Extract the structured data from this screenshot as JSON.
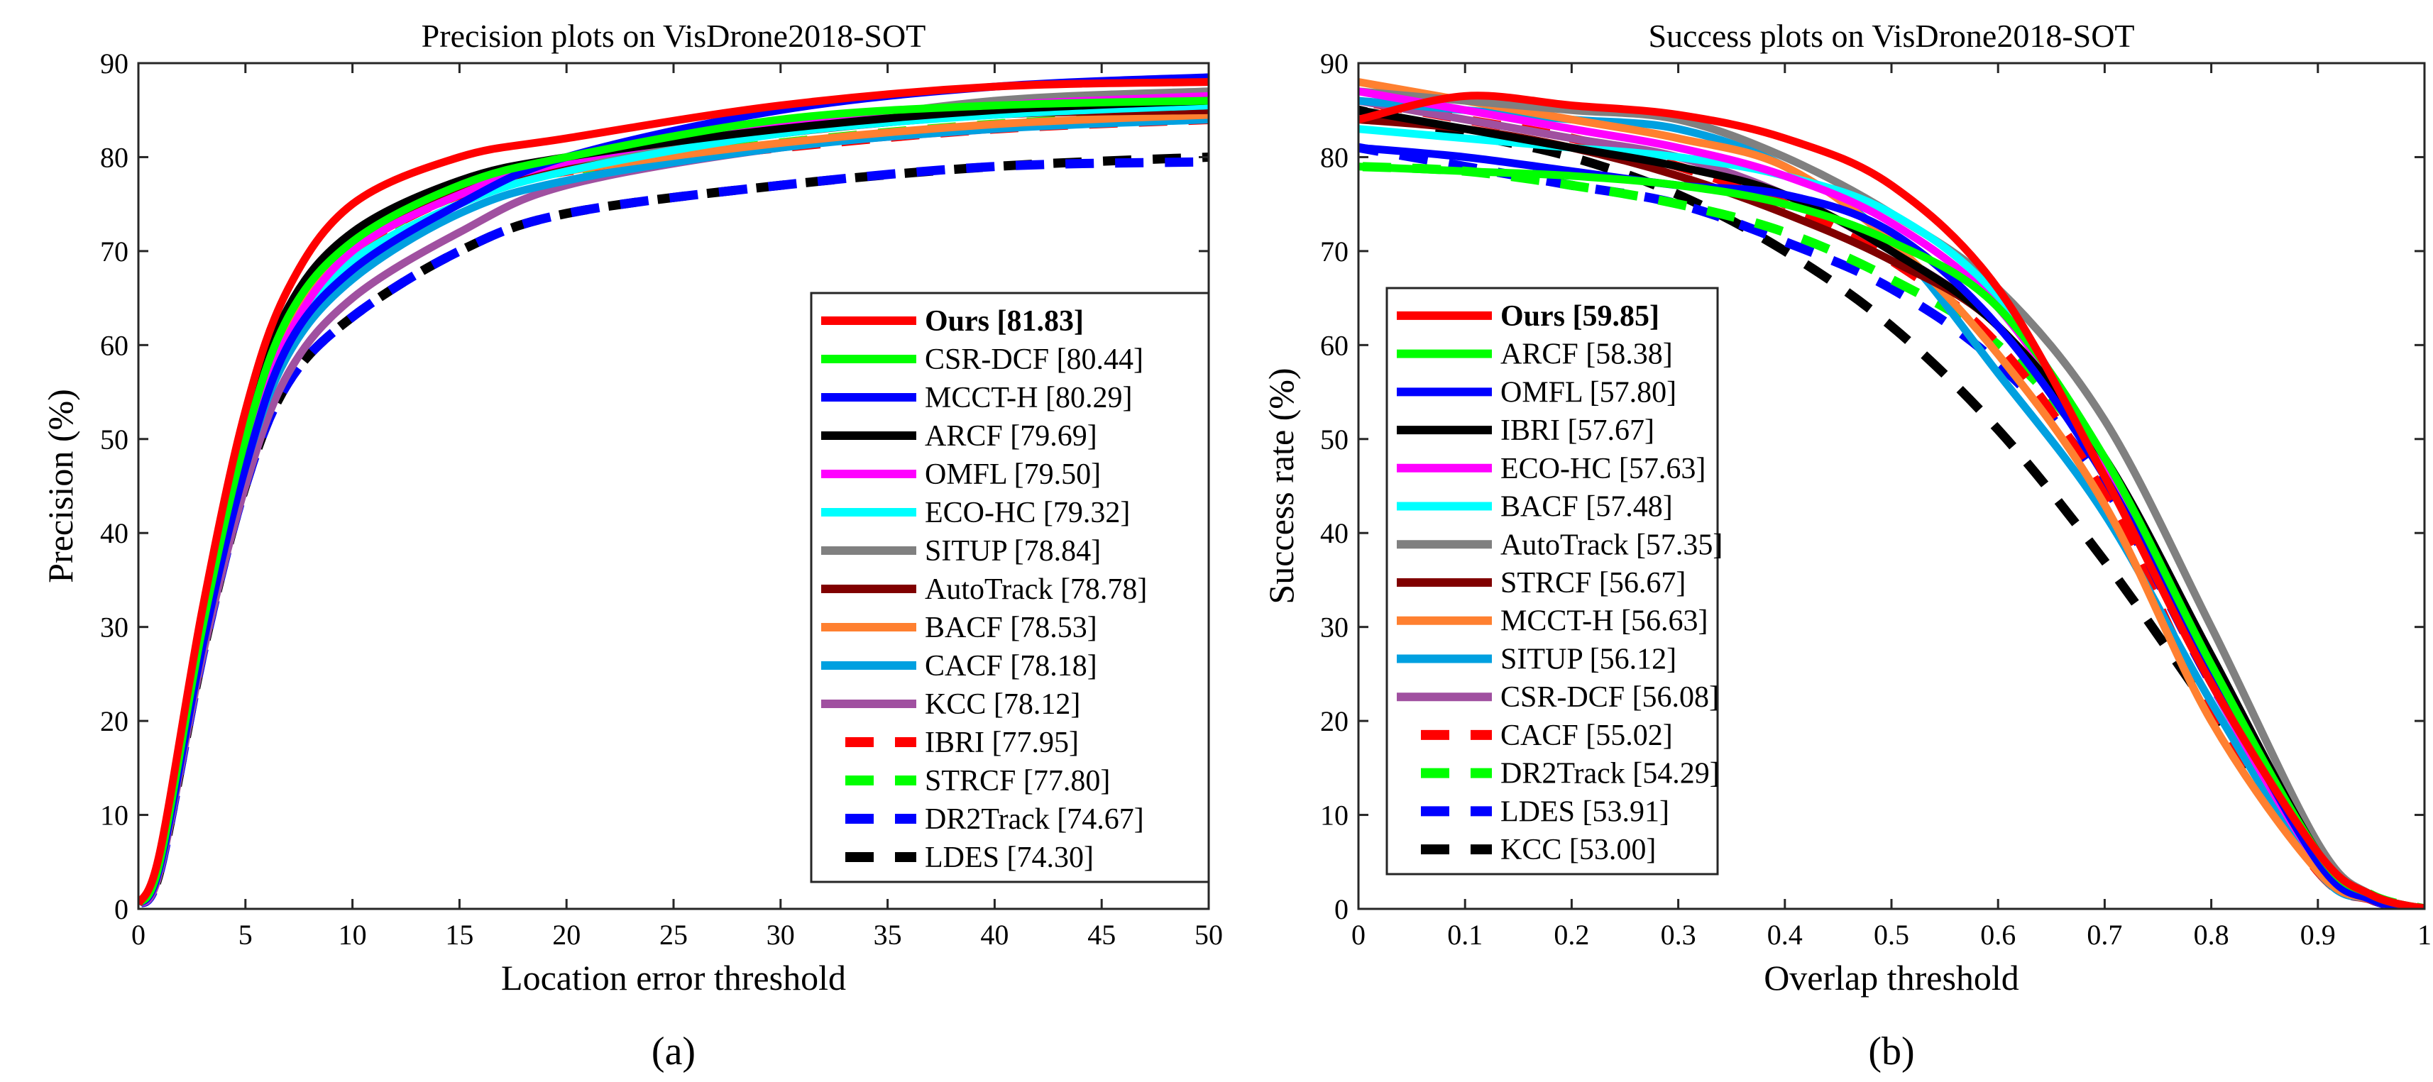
{
  "chart_data": [
    {
      "type": "line",
      "panel_label": "(a)",
      "title": "Precision plots on VisDrone2018-SOT",
      "xlabel": "Location error threshold",
      "ylabel": "Precision (%)",
      "xlim": [
        0,
        50
      ],
      "ylim": [
        0,
        90
      ],
      "xticks": [
        0,
        5,
        10,
        15,
        20,
        25,
        30,
        35,
        40,
        45,
        50
      ],
      "yticks": [
        0,
        10,
        20,
        30,
        40,
        50,
        60,
        70,
        80,
        90
      ],
      "grid": false,
      "legend_position": "bottom-right",
      "x": [
        0,
        1,
        3,
        5,
        7,
        10,
        15,
        20,
        30,
        40,
        50
      ],
      "series": [
        {
          "name": "Ours [81.83]",
          "color": "#ff0000",
          "dashed": false,
          "bold": true,
          "values": [
            0.5,
            6,
            32,
            53,
            66,
            75,
            80,
            82,
            85.5,
            87.5,
            88
          ]
        },
        {
          "name": "CSR-DCF [80.44]",
          "color": "#00ff00",
          "dashed": false,
          "values": [
            0.5,
            5,
            30,
            50,
            63,
            71,
            77,
            80,
            84,
            85.5,
            86
          ]
        },
        {
          "name": "MCCT-H [80.29]",
          "color": "#0000ff",
          "dashed": false,
          "values": [
            0.5,
            4.5,
            28,
            47,
            60,
            68,
            75,
            80,
            85,
            87.5,
            88.5
          ]
        },
        {
          "name": "ARCF [79.69]",
          "color": "#000000",
          "dashed": false,
          "values": [
            0.5,
            5,
            31,
            51,
            64,
            72,
            77.5,
            80,
            83,
            85,
            86
          ]
        },
        {
          "name": "OMFL [79.50]",
          "color": "#ff00ff",
          "dashed": false,
          "values": [
            0.5,
            4.5,
            29,
            48,
            61,
            70,
            76,
            79.5,
            83.5,
            85.5,
            86.5
          ]
        },
        {
          "name": "ECO-HC [79.32]",
          "color": "#00ffff",
          "dashed": false,
          "values": [
            0.5,
            5,
            29,
            48,
            61,
            69,
            75,
            78.5,
            82.5,
            84.5,
            85.5
          ]
        },
        {
          "name": "SITUP [78.84]",
          "color": "#808080",
          "dashed": false,
          "values": [
            0.5,
            5,
            30,
            50,
            63,
            71,
            77,
            79.5,
            83,
            86,
            87
          ]
        },
        {
          "name": "AutoTrack [78.78]",
          "color": "#800000",
          "dashed": false,
          "values": [
            0.5,
            5,
            30,
            50,
            63,
            71,
            76.5,
            79,
            82.5,
            84.5,
            85
          ]
        },
        {
          "name": "BACF [78.53]",
          "color": "#ff8030",
          "dashed": false,
          "values": [
            0.5,
            5,
            30,
            50,
            62,
            70,
            76,
            78.5,
            81.5,
            83.5,
            84.5
          ]
        },
        {
          "name": "CACF [78.18]",
          "color": "#00a0e0",
          "dashed": false,
          "values": [
            0.5,
            4.5,
            28,
            47,
            59,
            67,
            74,
            77.5,
            81,
            83,
            84
          ]
        },
        {
          "name": "KCC [78.12]",
          "color": "#a050a0",
          "dashed": false,
          "values": [
            0.5,
            4,
            27,
            45,
            57,
            65,
            72,
            77,
            81,
            83,
            84.5
          ]
        },
        {
          "name": "IBRI [77.95]",
          "color": "#ff0000",
          "dashed": true,
          "values": [
            0.5,
            5,
            30,
            49,
            62,
            70,
            76,
            78.5,
            81,
            83,
            84
          ]
        },
        {
          "name": "STRCF [77.80]",
          "color": "#00ff00",
          "dashed": true,
          "values": [
            0.5,
            5,
            30,
            49,
            62,
            70,
            76,
            78.5,
            81.5,
            83.5,
            84.5
          ]
        },
        {
          "name": "DR2Track [74.67]",
          "color": "#0000ff",
          "dashed": true,
          "values": [
            0.5,
            4,
            27,
            45,
            56,
            63,
            70,
            74,
            77,
            79,
            79.5
          ]
        },
        {
          "name": "LDES [74.30]",
          "color": "#000000",
          "dashed": true,
          "values": [
            0.5,
            4,
            27,
            45,
            56,
            63,
            70,
            74,
            77,
            79,
            80
          ]
        }
      ]
    },
    {
      "type": "line",
      "panel_label": "(b)",
      "title": "Success plots on VisDrone2018-SOT",
      "xlabel": "Overlap threshold",
      "ylabel": "Success rate (%)",
      "xlim": [
        0,
        1
      ],
      "ylim": [
        0,
        90
      ],
      "xticks": [
        0,
        0.1,
        0.2,
        0.3,
        0.4,
        0.5,
        0.6,
        0.7,
        0.8,
        0.9,
        1
      ],
      "yticks": [
        0,
        10,
        20,
        30,
        40,
        50,
        60,
        70,
        80,
        90
      ],
      "grid": false,
      "legend_position": "bottom-left",
      "x": [
        0,
        0.1,
        0.2,
        0.3,
        0.4,
        0.5,
        0.6,
        0.7,
        0.8,
        0.9,
        0.95,
        1
      ],
      "series": [
        {
          "name": "Ours [59.85]",
          "color": "#ff0000",
          "dashed": false,
          "bold": true,
          "values": [
            84,
            86.5,
            85.5,
            84.5,
            82,
            77,
            66,
            46,
            24,
            6,
            1.5,
            0
          ]
        },
        {
          "name": "ARCF [58.38]",
          "color": "#00ff00",
          "dashed": false,
          "values": [
            79,
            78.5,
            78,
            77,
            75,
            71,
            64,
            48,
            26,
            6,
            1.5,
            0
          ]
        },
        {
          "name": "OMFL [57.80]",
          "color": "#0000ff",
          "dashed": false,
          "values": [
            81,
            80,
            78.5,
            77,
            76,
            72,
            62,
            46,
            25,
            5,
            1,
            0
          ]
        },
        {
          "name": "IBRI [57.67]",
          "color": "#000000",
          "dashed": false,
          "values": [
            85,
            83,
            81,
            79,
            76,
            70,
            62,
            48,
            27,
            6,
            1.5,
            0
          ]
        },
        {
          "name": "ECO-HC [57.63]",
          "color": "#ff00ff",
          "dashed": false,
          "values": [
            87,
            85,
            83,
            81,
            78,
            73,
            64,
            47,
            24,
            5,
            1,
            0
          ]
        },
        {
          "name": "BACF [57.48]",
          "color": "#00ffff",
          "dashed": false,
          "values": [
            83,
            82,
            81,
            80,
            78,
            74,
            65,
            47,
            24,
            5,
            1,
            0
          ]
        },
        {
          "name": "AutoTrack [57.35]",
          "color": "#808080",
          "dashed": false,
          "values": [
            87,
            86,
            85,
            84,
            80,
            74,
            66,
            52,
            30,
            7,
            1.5,
            0
          ]
        },
        {
          "name": "STRCF [56.67]",
          "color": "#800000",
          "dashed": false,
          "values": [
            84,
            83,
            81,
            78,
            74,
            69,
            62,
            47,
            25,
            5,
            1,
            0
          ]
        },
        {
          "name": "MCCT-H [56.63]",
          "color": "#ff8030",
          "dashed": false,
          "values": [
            88,
            86,
            84,
            82,
            79,
            71,
            59,
            43,
            20,
            4,
            1,
            0
          ]
        },
        {
          "name": "SITUP [56.12]",
          "color": "#00a0e0",
          "dashed": false,
          "values": [
            86,
            85,
            84,
            83,
            79,
            71,
            57,
            42,
            22,
            4,
            1,
            0
          ]
        },
        {
          "name": "CSR-DCF [56.08]",
          "color": "#a050a0",
          "dashed": false,
          "values": [
            86,
            84,
            82,
            80,
            76,
            70,
            62,
            47,
            24,
            5,
            1,
            0
          ]
        },
        {
          "name": "CACF [55.02]",
          "color": "#ff0000",
          "dashed": true,
          "values": [
            86,
            84,
            82,
            79,
            75,
            69,
            60,
            44,
            21,
            4,
            1,
            0
          ]
        },
        {
          "name": "DR2Track [54.29]",
          "color": "#00ff00",
          "dashed": true,
          "values": [
            79,
            78.5,
            77,
            75,
            72,
            67,
            60,
            47,
            26,
            6,
            1.5,
            0
          ]
        },
        {
          "name": "LDES [53.91]",
          "color": "#0000ff",
          "dashed": true,
          "values": [
            81,
            79,
            77,
            75,
            71,
            66,
            58,
            45,
            24,
            5,
            1,
            0
          ]
        },
        {
          "name": "KCC [53.00]",
          "color": "#000000",
          "dashed": true,
          "values": [
            85,
            82.5,
            80,
            76,
            70,
            62,
            51,
            37,
            21,
            5,
            1,
            0
          ]
        }
      ]
    }
  ]
}
